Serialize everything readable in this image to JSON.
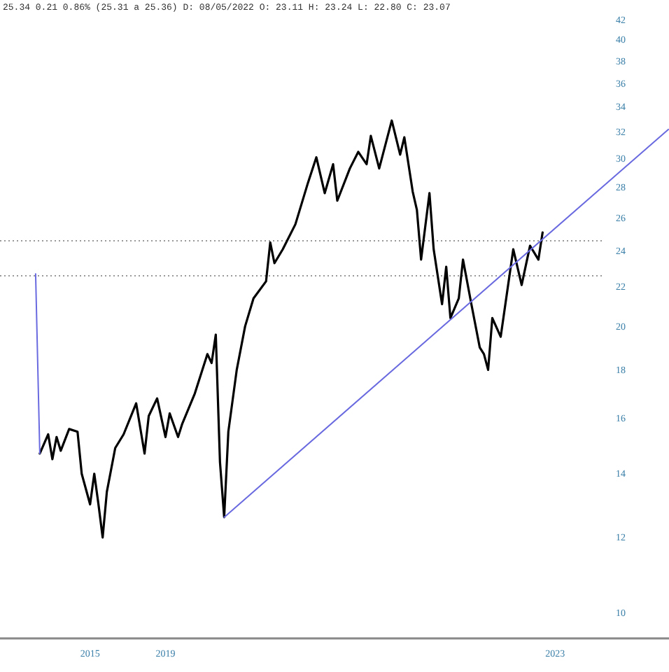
{
  "chart_data": {
    "type": "line",
    "annotations": [
      "25.34 0.21 0.86% (25.31 a 25.36) D: 08/05/2022 O: 23.11 H: 23.24 L: 22.80 C: 23.07"
    ],
    "categories": [
      null,
      null,
      null,
      null,
      null,
      null,
      null,
      null,
      null,
      null,
      null,
      null,
      null,
      null,
      null,
      null,
      null,
      null,
      null,
      null,
      null,
      "2015",
      null,
      null,
      null,
      null,
      null,
      null,
      null,
      null,
      null,
      null,
      null,
      null,
      null,
      null,
      null,
      null,
      null,
      "2019",
      null,
      null,
      null,
      null,
      null,
      null,
      null,
      null,
      null,
      null,
      null,
      null,
      null,
      null,
      null,
      null,
      null,
      null,
      null,
      null,
      null,
      null,
      null,
      null,
      null,
      null,
      null,
      null,
      null,
      null,
      null,
      null,
      null,
      null,
      null,
      null,
      null,
      null,
      null,
      null,
      null,
      null,
      null,
      null,
      null,
      null,
      null,
      null,
      null,
      null,
      null,
      null,
      null,
      null,
      null,
      null,
      null,
      null,
      null,
      null,
      null,
      null,
      null,
      null,
      null,
      null,
      null,
      null,
      null,
      null,
      null,
      null,
      null,
      null,
      null,
      null,
      null,
      null,
      null,
      null,
      null,
      null,
      null,
      null,
      null,
      null,
      null,
      null,
      null,
      null,
      null,
      null,
      "2023",
      null,
      null,
      null,
      null,
      null,
      null,
      null,
      null,
      null,
      null,
      null,
      null,
      null,
      null,
      null,
      null,
      null,
      null,
      null,
      null,
      null,
      null,
      null,
      null,
      null,
      null,
      null
    ],
    "series": [
      {
        "color": "#000000",
        "values": [
          null,
          null,
          null,
          null,
          null,
          null,
          null,
          null,
          null,
          14.7,
          null,
          15.4,
          14.5,
          15.3,
          14.8,
          null,
          15.6,
          null,
          15.5,
          14.0,
          null,
          13.0,
          14.0,
          13.0,
          12.0,
          13.4,
          null,
          14.9,
          null,
          15.4,
          null,
          null,
          16.6,
          null,
          14.7,
          16.1,
          null,
          16.8,
          null,
          15.3,
          16.2,
          null,
          15.3,
          15.8,
          null,
          null,
          17.0,
          null,
          null,
          18.7,
          18.3,
          19.6,
          14.4,
          12.6,
          15.5,
          null,
          18.0,
          null,
          20.0,
          null,
          21.4,
          null,
          null,
          22.3,
          24.5,
          23.3,
          null,
          24.1,
          null,
          null,
          25.6,
          null,
          null,
          28.3,
          null,
          30.1,
          null,
          27.6,
          null,
          29.6,
          27.1,
          null,
          null,
          29.3,
          null,
          30.5,
          null,
          29.6,
          31.7,
          null,
          29.3,
          null,
          null,
          32.9,
          null,
          30.3,
          31.6,
          null,
          27.7,
          26.5,
          23.5,
          null,
          27.6,
          24.1,
          null,
          21.1,
          23.1,
          20.4,
          null,
          21.4,
          23.5,
          null,
          21.1,
          null,
          19.0,
          18.7,
          18.0,
          20.4,
          null,
          19.5,
          null,
          null,
          24.1,
          null,
          22.1,
          null,
          24.3,
          null,
          23.5,
          25.1,
          null,
          null,
          null,
          null,
          null,
          null,
          null,
          null,
          null,
          null,
          null,
          null,
          null,
          null,
          null,
          null,
          null,
          null,
          null,
          null,
          null,
          null,
          null,
          null,
          null,
          null,
          null,
          null,
          null,
          null
        ]
      },
      {
        "color": "#6a6ae0",
        "values": [
          null,
          null,
          null,
          null,
          null,
          null,
          null,
          null,
          22.7,
          14.7,
          null,
          null,
          null,
          null,
          null,
          null,
          null,
          null,
          null,
          null,
          null,
          null,
          null,
          null,
          null,
          null,
          null,
          null,
          null,
          null,
          null,
          null,
          null,
          null,
          null,
          null,
          null,
          null,
          null,
          null,
          null,
          null,
          null,
          null,
          null,
          null,
          null,
          null,
          null,
          null,
          null,
          null,
          null,
          null,
          null,
          null,
          null,
          null,
          null,
          null,
          null,
          null,
          null,
          null,
          null,
          null,
          null,
          null,
          null,
          null,
          null,
          null,
          null,
          null,
          null,
          null,
          null,
          null,
          null,
          null,
          null,
          null,
          null,
          null,
          null,
          null,
          null,
          null,
          null,
          null,
          null,
          null,
          null,
          null,
          null,
          null,
          null,
          null,
          null,
          null,
          null,
          null,
          null,
          null,
          null,
          null,
          null,
          null,
          null,
          null,
          null,
          null,
          null,
          null,
          null,
          null,
          null,
          null,
          null,
          null,
          null,
          null,
          null,
          null,
          null,
          null,
          null,
          null,
          null,
          null,
          null,
          null,
          null,
          null,
          null,
          null,
          null,
          null,
          null,
          null,
          null,
          null,
          null,
          null,
          null,
          null,
          null,
          null,
          null,
          null,
          null,
          null,
          null,
          null,
          null,
          null,
          null,
          null,
          null,
          null
        ]
      },
      {
        "color": "#6a6ae0",
        "values": [
          null,
          null,
          null,
          null,
          null,
          null,
          null,
          null,
          null,
          null,
          null,
          null,
          null,
          null,
          null,
          null,
          null,
          null,
          null,
          null,
          null,
          null,
          null,
          null,
          null,
          null,
          null,
          null,
          null,
          null,
          null,
          null,
          null,
          null,
          null,
          null,
          null,
          null,
          null,
          null,
          null,
          null,
          null,
          null,
          null,
          null,
          null,
          null,
          null,
          null,
          null,
          null,
          null,
          12.6,
          null,
          null,
          null,
          null,
          null,
          null,
          null,
          null,
          null,
          null,
          null,
          null,
          null,
          null,
          null,
          null,
          null,
          null,
          null,
          null,
          null,
          null,
          null,
          null,
          null,
          null,
          null,
          null,
          null,
          null,
          null,
          null,
          null,
          null,
          null,
          null,
          null,
          null,
          null,
          null,
          null,
          null,
          null,
          null,
          null,
          null,
          null,
          null,
          null,
          null,
          null,
          null,
          null,
          null,
          null,
          null,
          null,
          null,
          null,
          null,
          null,
          null,
          null,
          null,
          null,
          null,
          null,
          null,
          null,
          null,
          null,
          null,
          null,
          null,
          null,
          null,
          null,
          null,
          null,
          null,
          null,
          null,
          null,
          null,
          null,
          null,
          null,
          null,
          null,
          null,
          null,
          null,
          null,
          null,
          null,
          null,
          null,
          null,
          null,
          null,
          null,
          null,
          null,
          null,
          null,
          32.2
        ]
      }
    ],
    "log": true,
    "ylim": [
      9.4,
      42
    ],
    "yticks": [
      10,
      12,
      14,
      16,
      18,
      20,
      22,
      24,
      26,
      28,
      30,
      32,
      34,
      36,
      38,
      40,
      42
    ],
    "ref_lines": [
      {
        "axis": "y",
        "value": 24.6,
        "color": "#999999",
        "line_style": "dotted"
      },
      {
        "axis": "y",
        "value": 22.6,
        "color": "#999999",
        "line_style": "dotted"
      }
    ]
  }
}
